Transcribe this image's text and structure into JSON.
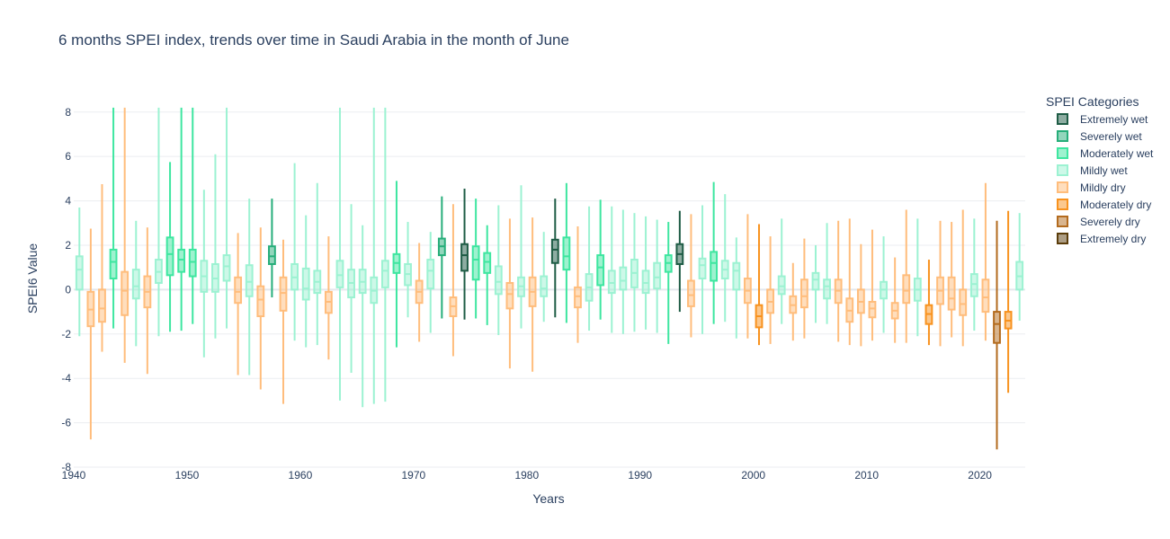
{
  "chart_data": {
    "type": "box",
    "title": "6 months SPEI index, trends over time in Saudi Arabia in the month of June",
    "xlabel": "Years",
    "ylabel": "SPEI6 Value",
    "xlim": [
      1940,
      2024
    ],
    "ylim": [
      -8,
      8.8
    ],
    "x_ticks": [
      1940,
      1950,
      1960,
      1970,
      1980,
      1990,
      2000,
      2010,
      2020
    ],
    "y_ticks": [
      -8,
      -6,
      -4,
      -2,
      0,
      2,
      4,
      6,
      8
    ],
    "grid": true,
    "legend": {
      "title": "SPEI Categories",
      "placement": "right"
    },
    "categories": [
      {
        "name": "Extremely wet",
        "color": "#1e5c45"
      },
      {
        "name": "Severely wet",
        "color": "#27ae7a"
      },
      {
        "name": "Moderately wet",
        "color": "#3ee6a0"
      },
      {
        "name": "Mildly wet",
        "color": "#9cf2d2"
      },
      {
        "name": "Mildly dry",
        "color": "#ffbd7c"
      },
      {
        "name": "Moderately dry",
        "color": "#f8921e"
      },
      {
        "name": "Severely dry",
        "color": "#b36b1e"
      },
      {
        "name": "Extremely dry",
        "color": "#5b3d0b"
      }
    ],
    "boxes": [
      {
        "year": 1940.5,
        "cat": "Mildly wet",
        "min": -2.1,
        "q1": 0,
        "median": 0.9,
        "q3": 1.5,
        "max": 3.7
      },
      {
        "year": 1941.5,
        "cat": "Mildly dry",
        "min": -6.75,
        "q1": -1.65,
        "median": -0.9,
        "q3": -0.1,
        "max": 2.75
      },
      {
        "year": 1942.5,
        "cat": "Mildly dry",
        "min": -2.8,
        "q1": -1.45,
        "median": -0.85,
        "q3": 0,
        "max": 4.75
      },
      {
        "year": 1943.5,
        "cat": "Moderately wet",
        "min": -1.75,
        "q1": 0.5,
        "median": 1.25,
        "q3": 1.8,
        "max": 8.2
      },
      {
        "year": 1944.5,
        "cat": "Mildly dry",
        "min": -3.3,
        "q1": -1.15,
        "median": -0.05,
        "q3": 0.8,
        "max": 8.2
      },
      {
        "year": 1945.5,
        "cat": "Mildly wet",
        "min": -2.55,
        "q1": -0.4,
        "median": 0.15,
        "q3": 0.9,
        "max": 3.1
      },
      {
        "year": 1946.5,
        "cat": "Mildly dry",
        "min": -3.8,
        "q1": -0.8,
        "median": -0.1,
        "q3": 0.6,
        "max": 2.8
      },
      {
        "year": 1947.5,
        "cat": "Mildly wet",
        "min": -2.1,
        "q1": 0.3,
        "median": 0.8,
        "q3": 1.35,
        "max": 8.2
      },
      {
        "year": 1948.5,
        "cat": "Moderately wet",
        "min": -1.9,
        "q1": 0.65,
        "median": 1.6,
        "q3": 2.35,
        "max": 5.75
      },
      {
        "year": 1949.5,
        "cat": "Moderately wet",
        "min": -1.85,
        "q1": 0.8,
        "median": 1.35,
        "q3": 1.8,
        "max": 8.2
      },
      {
        "year": 1950.5,
        "cat": "Moderately wet",
        "min": -1.55,
        "q1": 0.6,
        "median": 1.25,
        "q3": 1.8,
        "max": 8.2
      },
      {
        "year": 1951.5,
        "cat": "Mildly wet",
        "min": -3.05,
        "q1": -0.1,
        "median": 0.6,
        "q3": 1.3,
        "max": 4.5
      },
      {
        "year": 1952.5,
        "cat": "Mildly wet",
        "min": -2.2,
        "q1": -0.1,
        "median": 0.5,
        "q3": 1.15,
        "max": 6.1
      },
      {
        "year": 1953.5,
        "cat": "Mildly wet",
        "min": -1.75,
        "q1": 0.4,
        "median": 1.05,
        "q3": 1.55,
        "max": 8.2
      },
      {
        "year": 1954.5,
        "cat": "Mildly dry",
        "min": -3.85,
        "q1": -0.6,
        "median": -0.1,
        "q3": 0.55,
        "max": 2.55
      },
      {
        "year": 1955.5,
        "cat": "Mildly wet",
        "min": -3.85,
        "q1": -0.3,
        "median": 0.35,
        "q3": 1.1,
        "max": 4.1
      },
      {
        "year": 1956.5,
        "cat": "Mildly dry",
        "min": -4.5,
        "q1": -1.2,
        "median": -0.45,
        "q3": 0.15,
        "max": 2.8
      },
      {
        "year": 1957.5,
        "cat": "Severely wet",
        "min": -0.35,
        "q1": 1.15,
        "median": 1.5,
        "q3": 1.95,
        "max": 4.1
      },
      {
        "year": 1958.5,
        "cat": "Mildly dry",
        "min": -5.15,
        "q1": -0.95,
        "median": -0.15,
        "q3": 0.55,
        "max": 2.25
      },
      {
        "year": 1959.5,
        "cat": "Mildly wet",
        "min": -2.3,
        "q1": 0,
        "median": 0.55,
        "q3": 1.15,
        "max": 5.7
      },
      {
        "year": 1960.5,
        "cat": "Mildly wet",
        "min": -2.6,
        "q1": -0.45,
        "median": 0.05,
        "q3": 0.95,
        "max": 3.35
      },
      {
        "year": 1961.5,
        "cat": "Mildly wet",
        "min": -2.5,
        "q1": -0.15,
        "median": 0.35,
        "q3": 0.85,
        "max": 4.8
      },
      {
        "year": 1962.5,
        "cat": "Mildly dry",
        "min": -3.15,
        "q1": -1.05,
        "median": -0.55,
        "q3": -0.1,
        "max": 2.4
      },
      {
        "year": 1963.5,
        "cat": "Mildly wet",
        "min": -5,
        "q1": 0.1,
        "median": 0.65,
        "q3": 1.3,
        "max": 8.2
      },
      {
        "year": 1964.5,
        "cat": "Mildly wet",
        "min": -3.75,
        "q1": -0.35,
        "median": 0.3,
        "q3": 0.9,
        "max": 3.85
      },
      {
        "year": 1965.5,
        "cat": "Mildly wet",
        "min": -5.3,
        "q1": -0.15,
        "median": 0.35,
        "q3": 0.9,
        "max": 2.9
      },
      {
        "year": 1966.5,
        "cat": "Mildly wet",
        "min": -5.15,
        "q1": -0.6,
        "median": -0.05,
        "q3": 0.55,
        "max": 8.2
      },
      {
        "year": 1967.5,
        "cat": "Mildly wet",
        "min": -5.05,
        "q1": 0.1,
        "median": 0.85,
        "q3": 1.3,
        "max": 8.2
      },
      {
        "year": 1968.5,
        "cat": "Moderately wet",
        "min": -2.6,
        "q1": 0.75,
        "median": 1.2,
        "q3": 1.6,
        "max": 4.9
      },
      {
        "year": 1969.5,
        "cat": "Mildly wet",
        "min": -1.25,
        "q1": 0.2,
        "median": 0.7,
        "q3": 1.15,
        "max": 3.05
      },
      {
        "year": 1970.5,
        "cat": "Mildly dry",
        "min": -2.35,
        "q1": -0.6,
        "median": -0.1,
        "q3": 0.4,
        "max": 2.1
      },
      {
        "year": 1971.5,
        "cat": "Mildly wet",
        "min": -1.95,
        "q1": 0.05,
        "median": 0.85,
        "q3": 1.35,
        "max": 2.6
      },
      {
        "year": 1972.5,
        "cat": "Severely wet",
        "min": -1.3,
        "q1": 1.55,
        "median": 1.95,
        "q3": 2.3,
        "max": 4.2
      },
      {
        "year": 1973.5,
        "cat": "Mildly dry",
        "min": -3,
        "q1": -1.2,
        "median": -0.75,
        "q3": -0.35,
        "max": 3.85
      },
      {
        "year": 1974.5,
        "cat": "Extremely wet",
        "min": -1.35,
        "q1": 0.85,
        "median": 1.55,
        "q3": 2.05,
        "max": 4.55
      },
      {
        "year": 1975.5,
        "cat": "Moderately wet",
        "min": -1.3,
        "q1": 0.45,
        "median": 1.35,
        "q3": 1.95,
        "max": 4.1
      },
      {
        "year": 1976.5,
        "cat": "Moderately wet",
        "min": -1.6,
        "q1": 0.75,
        "median": 1.25,
        "q3": 1.65,
        "max": 2.9
      },
      {
        "year": 1977.5,
        "cat": "Mildly wet",
        "min": -2.05,
        "q1": -0.2,
        "median": 0.35,
        "q3": 1.05,
        "max": 3.8
      },
      {
        "year": 1978.5,
        "cat": "Mildly dry",
        "min": -3.55,
        "q1": -0.85,
        "median": -0.2,
        "q3": 0.3,
        "max": 3.2
      },
      {
        "year": 1979.5,
        "cat": "Mildly wet",
        "min": -1.75,
        "q1": -0.3,
        "median": 0.15,
        "q3": 0.55,
        "max": 4.7
      },
      {
        "year": 1980.5,
        "cat": "Mildly dry",
        "min": -3.7,
        "q1": -0.75,
        "median": -0.1,
        "q3": 0.55,
        "max": 3.25
      },
      {
        "year": 1981.5,
        "cat": "Mildly wet",
        "min": -1.45,
        "q1": -0.3,
        "median": 0.05,
        "q3": 0.6,
        "max": 2.6
      },
      {
        "year": 1982.5,
        "cat": "Extremely wet",
        "min": -1.25,
        "q1": 1.2,
        "median": 1.8,
        "q3": 2.25,
        "max": 4.1
      },
      {
        "year": 1983.5,
        "cat": "Moderately wet",
        "min": -1.5,
        "q1": 0.9,
        "median": 1.5,
        "q3": 2.35,
        "max": 4.8
      },
      {
        "year": 1984.5,
        "cat": "Mildly dry",
        "min": -2.4,
        "q1": -0.8,
        "median": -0.3,
        "q3": 0.1,
        "max": 2.85
      },
      {
        "year": 1985.5,
        "cat": "Mildly wet",
        "min": -1.85,
        "q1": -0.5,
        "median": 0.1,
        "q3": 0.7,
        "max": 3.75
      },
      {
        "year": 1986.5,
        "cat": "Moderately wet",
        "min": -1.35,
        "q1": 0.2,
        "median": 1,
        "q3": 1.55,
        "max": 4.05
      },
      {
        "year": 1987.5,
        "cat": "Mildly wet",
        "min": -1.95,
        "q1": -0.15,
        "median": 0.3,
        "q3": 0.85,
        "max": 3.75
      },
      {
        "year": 1988.5,
        "cat": "Mildly wet",
        "min": -2,
        "q1": 0,
        "median": 0.4,
        "q3": 1,
        "max": 3.6
      },
      {
        "year": 1989.5,
        "cat": "Mildly wet",
        "min": -1.9,
        "q1": 0.1,
        "median": 0.75,
        "q3": 1.35,
        "max": 3.45
      },
      {
        "year": 1990.5,
        "cat": "Mildly wet",
        "min": -1.8,
        "q1": -0.15,
        "median": 0.3,
        "q3": 0.85,
        "max": 3.3
      },
      {
        "year": 1991.5,
        "cat": "Mildly wet",
        "min": -1.95,
        "q1": 0.05,
        "median": 0.55,
        "q3": 1.2,
        "max": 3.15
      },
      {
        "year": 1992.5,
        "cat": "Moderately wet",
        "min": -2.45,
        "q1": 0.8,
        "median": 1.2,
        "q3": 1.55,
        "max": 3.05
      },
      {
        "year": 1993.5,
        "cat": "Extremely wet",
        "min": -1,
        "q1": 1.15,
        "median": 1.6,
        "q3": 2.05,
        "max": 3.55
      },
      {
        "year": 1994.5,
        "cat": "Mildly dry",
        "min": -2.15,
        "q1": -0.75,
        "median": -0.25,
        "q3": 0.4,
        "max": 3.4
      },
      {
        "year": 1995.5,
        "cat": "Mildly wet",
        "min": -2,
        "q1": 0.5,
        "median": 1.1,
        "q3": 1.4,
        "max": 3.8
      },
      {
        "year": 1996.5,
        "cat": "Moderately wet",
        "min": -1.55,
        "q1": 0.4,
        "median": 1.2,
        "q3": 1.7,
        "max": 4.85
      },
      {
        "year": 1997.5,
        "cat": "Mildly wet",
        "min": -1.45,
        "q1": 0.5,
        "median": 0.9,
        "q3": 1.3,
        "max": 4.3
      },
      {
        "year": 1998.5,
        "cat": "Mildly wet",
        "min": -2.2,
        "q1": 0,
        "median": 0.85,
        "q3": 1.2,
        "max": 2.35
      },
      {
        "year": 1999.5,
        "cat": "Mildly dry",
        "min": -2.2,
        "q1": -0.6,
        "median": -0.05,
        "q3": 0.5,
        "max": 3.4
      },
      {
        "year": 2000.5,
        "cat": "Moderately dry",
        "min": -2.5,
        "q1": -1.7,
        "median": -1.2,
        "q3": -0.7,
        "max": 2.95
      },
      {
        "year": 2001.5,
        "cat": "Mildly dry",
        "min": -2.45,
        "q1": -1.05,
        "median": -0.55,
        "q3": 0,
        "max": 2.4
      },
      {
        "year": 2002.5,
        "cat": "Mildly wet",
        "min": -1.55,
        "q1": -0.2,
        "median": 0.15,
        "q3": 0.6,
        "max": 3.2
      },
      {
        "year": 2003.5,
        "cat": "Mildly dry",
        "min": -2.3,
        "q1": -1.05,
        "median": -0.7,
        "q3": -0.3,
        "max": 1.2
      },
      {
        "year": 2004.5,
        "cat": "Mildly dry",
        "min": -2.2,
        "q1": -0.8,
        "median": -0.3,
        "q3": 0.45,
        "max": 2.3
      },
      {
        "year": 2005.5,
        "cat": "Mildly wet",
        "min": -1.5,
        "q1": 0,
        "median": 0.45,
        "q3": 0.75,
        "max": 2
      },
      {
        "year": 2006.5,
        "cat": "Mildly wet",
        "min": -1.55,
        "q1": -0.4,
        "median": 0.15,
        "q3": 0.45,
        "max": 3
      },
      {
        "year": 2007.5,
        "cat": "Mildly dry",
        "min": -2.35,
        "q1": -0.6,
        "median": -0.05,
        "q3": 0.45,
        "max": 3.1
      },
      {
        "year": 2008.5,
        "cat": "Mildly dry",
        "min": -2.5,
        "q1": -1.45,
        "median": -0.95,
        "q3": -0.4,
        "max": 3.2
      },
      {
        "year": 2009.5,
        "cat": "Mildly dry",
        "min": -2.55,
        "q1": -1.05,
        "median": -0.55,
        "q3": 0,
        "max": 2.05
      },
      {
        "year": 2010.5,
        "cat": "Mildly dry",
        "min": -2.3,
        "q1": -1.25,
        "median": -0.85,
        "q3": -0.55,
        "max": 2.7
      },
      {
        "year": 2011.5,
        "cat": "Mildly wet",
        "min": -1.95,
        "q1": -0.4,
        "median": 0,
        "q3": 0.35,
        "max": 2.4
      },
      {
        "year": 2012.5,
        "cat": "Mildly dry",
        "min": -2.4,
        "q1": -1.3,
        "median": -0.95,
        "q3": -0.6,
        "max": 1.45
      },
      {
        "year": 2013.5,
        "cat": "Mildly dry",
        "min": -2.4,
        "q1": -0.6,
        "median": -0.05,
        "q3": 0.65,
        "max": 3.6
      },
      {
        "year": 2014.5,
        "cat": "Mildly wet",
        "min": -2.1,
        "q1": -0.5,
        "median": 0,
        "q3": 0.5,
        "max": 3.2
      },
      {
        "year": 2015.5,
        "cat": "Moderately dry",
        "min": -2.5,
        "q1": -1.55,
        "median": -1.1,
        "q3": -0.7,
        "max": 1.35
      },
      {
        "year": 2016.5,
        "cat": "Mildly dry",
        "min": -2.55,
        "q1": -0.65,
        "median": -0.05,
        "q3": 0.55,
        "max": 3.1
      },
      {
        "year": 2017.5,
        "cat": "Mildly dry",
        "min": -2.15,
        "q1": -0.9,
        "median": -0.4,
        "q3": 0.55,
        "max": 3.05
      },
      {
        "year": 2018.5,
        "cat": "Mildly dry",
        "min": -2.55,
        "q1": -1.15,
        "median": -0.65,
        "q3": 0,
        "max": 3.6
      },
      {
        "year": 2019.5,
        "cat": "Mildly wet",
        "min": -1.85,
        "q1": -0.3,
        "median": 0.25,
        "q3": 0.7,
        "max": 3.2
      },
      {
        "year": 2020.5,
        "cat": "Mildly dry",
        "min": -2.3,
        "q1": -1,
        "median": -0.35,
        "q3": 0.45,
        "max": 4.8
      },
      {
        "year": 2021.5,
        "cat": "Severely dry",
        "min": -7.2,
        "q1": -2.4,
        "median": -1.55,
        "q3": -1,
        "max": 3.1
      },
      {
        "year": 2022.5,
        "cat": "Moderately dry",
        "min": -4.65,
        "q1": -1.75,
        "median": -1.4,
        "q3": -1,
        "max": 3.55
      },
      {
        "year": 2023.5,
        "cat": "Mildly wet",
        "min": -1.4,
        "q1": 0,
        "median": 0.6,
        "q3": 1.25,
        "max": 3.45
      }
    ]
  }
}
